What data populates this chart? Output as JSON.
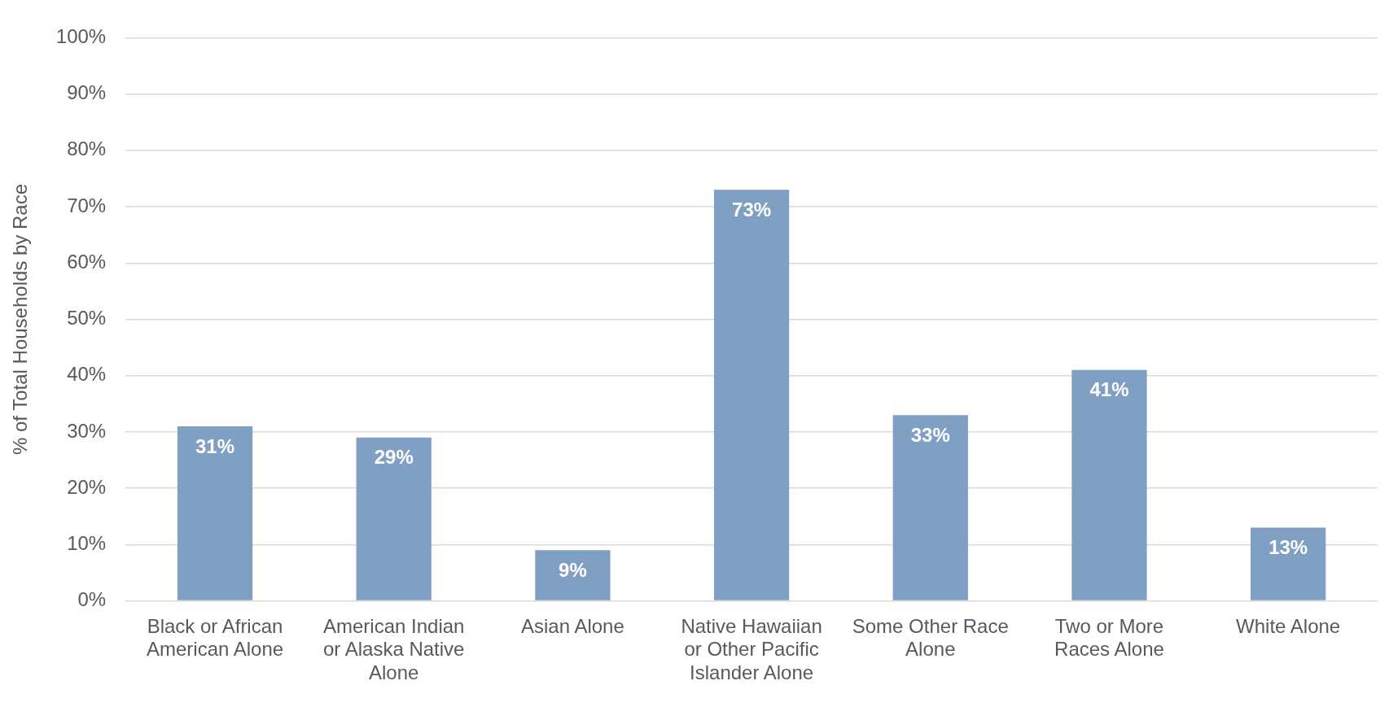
{
  "chart_data": {
    "type": "bar",
    "ylabel": "% of Total Households by Race",
    "categories": [
      "Black or African American Alone",
      "American Indian or Alaska Native Alone",
      "Asian Alone",
      "Native Hawaiian or Other Pacific Islander Alone",
      "Some Other Race Alone",
      "Two or More Races Alone",
      "White Alone"
    ],
    "values": [
      31,
      29,
      9,
      73,
      33,
      41,
      13
    ],
    "value_labels": [
      "31%",
      "29%",
      "9%",
      "73%",
      "33%",
      "41%",
      "13%"
    ],
    "color": "#7f9fc3",
    "ylim": [
      0,
      100
    ],
    "yticks": [
      {
        "value": 0,
        "label": "0%"
      },
      {
        "value": 10,
        "label": "10%"
      },
      {
        "value": 20,
        "label": "20%"
      },
      {
        "value": 30,
        "label": "30%"
      },
      {
        "value": 40,
        "label": "40%"
      },
      {
        "value": 50,
        "label": "50%"
      },
      {
        "value": 60,
        "label": "60%"
      },
      {
        "value": 70,
        "label": "70%"
      },
      {
        "value": 80,
        "label": "80%"
      },
      {
        "value": 90,
        "label": "90%"
      },
      {
        "value": 100,
        "label": "100%"
      }
    ],
    "grid": "y",
    "legend": false
  }
}
